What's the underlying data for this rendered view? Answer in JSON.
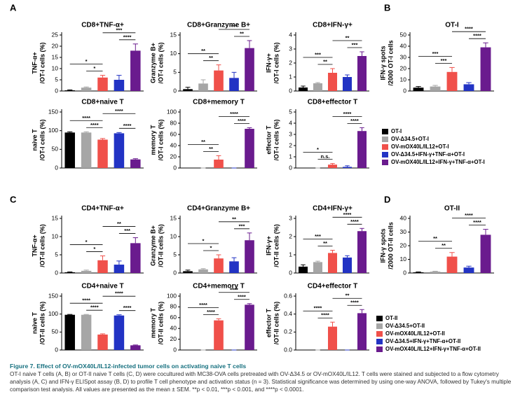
{
  "panel_labels": [
    "A",
    "B",
    "C",
    "D"
  ],
  "bar_colors": [
    "#000000",
    "#a6a6a6",
    "#f0504a",
    "#2233c4",
    "#6a1b8e"
  ],
  "legends": [
    {
      "entries": [
        "OT-I",
        "OV-Δ34.5+OT-I",
        "OV-mOX40L/IL12+OT-I",
        "OV-Δ34.5+IFN-γ+TNF-α+OT-I",
        "OV-mOX40L/IL12+IFN-γ+TNF-α+OT-I"
      ]
    },
    {
      "entries": [
        "OT-II",
        "OV-Δ34.5+OT-II",
        "OV-mOX40L/IL12+OT-II",
        "OV-Δ34.5+IFN-γ+TNF-α+OT-II",
        "OV-mOX40L/IL12+IFN-γ+TNF-α+OT-II"
      ]
    }
  ],
  "chart_data": [
    {
      "type": "bar",
      "title": "CD8+TNF-α+",
      "y_label": [
        "TNF-α+",
        "/OT-I cells (%)"
      ],
      "values": [
        0.3,
        1.5,
        6,
        5,
        18
      ],
      "errors": [
        0.2,
        0.3,
        1,
        2,
        3
      ],
      "ylim": [
        0,
        25
      ],
      "yticks": [
        0,
        5,
        10,
        15,
        20,
        25
      ],
      "comparisons": [
        {
          "bars": [
            0,
            2
          ],
          "label": "*"
        },
        {
          "bars": [
            1,
            2
          ],
          "label": "*"
        },
        {
          "bars": [
            2,
            4
          ],
          "label": "***"
        },
        {
          "bars": [
            3,
            4
          ],
          "label": "****"
        }
      ]
    },
    {
      "type": "bar",
      "title": "CD8+Granzyme B+",
      "y_label": [
        "Granzyme B+",
        "/OT-I cells (%)"
      ],
      "values": [
        0.5,
        2,
        5.5,
        3.5,
        11.5
      ],
      "errors": [
        0.5,
        1,
        1.5,
        1.5,
        2
      ],
      "ylim": [
        0,
        15
      ],
      "yticks": [
        0,
        5,
        10,
        15
      ],
      "comparisons": [
        {
          "bars": [
            0,
            2
          ],
          "label": "**"
        },
        {
          "bars": [
            1,
            2
          ],
          "label": "**"
        },
        {
          "bars": [
            2,
            4
          ],
          "label": "***"
        },
        {
          "bars": [
            3,
            4
          ],
          "label": "**"
        }
      ]
    },
    {
      "type": "bar",
      "title": "CD8+IFN-γ+",
      "y_label": [
        "IFN-γ+",
        "/OT-I cells (%)"
      ],
      "values": [
        0.25,
        0.55,
        1.3,
        1.0,
        2.5
      ],
      "errors": [
        0.1,
        0.05,
        0.3,
        0.15,
        0.3
      ],
      "ylim": [
        0,
        4
      ],
      "yticks": [
        0,
        1,
        2,
        3,
        4
      ],
      "comparisons": [
        {
          "bars": [
            0,
            2
          ],
          "label": "***"
        },
        {
          "bars": [
            1,
            2
          ],
          "label": "**"
        },
        {
          "bars": [
            2,
            4
          ],
          "label": "**"
        },
        {
          "bars": [
            3,
            4
          ],
          "label": "***"
        }
      ]
    },
    {
      "type": "bar",
      "title": "OT-I",
      "y_label": [
        "IFN-γ spots",
        "/2000 OT-I cells"
      ],
      "values": [
        3,
        4,
        17,
        6,
        39
      ],
      "errors": [
        1,
        1,
        4,
        1.5,
        4
      ],
      "ylim": [
        0,
        50
      ],
      "yticks": [
        0,
        10,
        20,
        30,
        40,
        50
      ],
      "comparisons": [
        {
          "bars": [
            0,
            2
          ],
          "label": "***"
        },
        {
          "bars": [
            1,
            2
          ],
          "label": "***"
        },
        {
          "bars": [
            2,
            4
          ],
          "label": "****"
        },
        {
          "bars": [
            3,
            4
          ],
          "label": "****"
        }
      ]
    },
    {
      "type": "bar",
      "title": "CD8+naive T",
      "y_label": [
        "naive T",
        "/OT-I cells (%)"
      ],
      "values": [
        95,
        95,
        76,
        93,
        23
      ],
      "errors": [
        2,
        2,
        3,
        2,
        2
      ],
      "ylim": [
        0,
        150
      ],
      "yticks": [
        0,
        50,
        100,
        150
      ],
      "comparisons": [
        {
          "bars": [
            0,
            2
          ],
          "label": "****"
        },
        {
          "bars": [
            1,
            2
          ],
          "label": "****"
        },
        {
          "bars": [
            2,
            4
          ],
          "label": "****"
        },
        {
          "bars": [
            3,
            4
          ],
          "label": "****"
        }
      ]
    },
    {
      "type": "bar",
      "title": "CD8+memory T",
      "y_label": [
        "memory T",
        "/OT-I cells (%)"
      ],
      "values": [
        0,
        0,
        15,
        0,
        70
      ],
      "errors": [
        0,
        0,
        7,
        0,
        2
      ],
      "ylim": [
        0,
        100
      ],
      "yticks": [
        0,
        20,
        40,
        60,
        80,
        100
      ],
      "comparisons": [
        {
          "bars": [
            0,
            2
          ],
          "label": "**"
        },
        {
          "bars": [
            1,
            2
          ],
          "label": "**"
        },
        {
          "bars": [
            2,
            4
          ],
          "label": "****"
        },
        {
          "bars": [
            3,
            4
          ],
          "label": "****"
        }
      ]
    },
    {
      "type": "bar",
      "title": "CD8+effector T",
      "y_label": [
        "effector T",
        "/OT-I cells (%)"
      ],
      "values": [
        0,
        0,
        0.3,
        0.1,
        3.3
      ],
      "errors": [
        0,
        0,
        0.1,
        0.1,
        0.3
      ],
      "ylim": [
        0,
        5
      ],
      "yticks": [
        0,
        1,
        2,
        3,
        4,
        5
      ],
      "comparisons": [
        {
          "bars": [
            0,
            2
          ],
          "label": "*"
        },
        {
          "bars": [
            1,
            2
          ],
          "label": "n.s."
        },
        {
          "bars": [
            2,
            4
          ],
          "label": "****"
        },
        {
          "bars": [
            3,
            4
          ],
          "label": "****"
        }
      ]
    },
    {
      "type": "bar",
      "title": "CD4+TNF-α+",
      "y_label": [
        "TNF-α+",
        "/OT-II cells (%)"
      ],
      "values": [
        0.2,
        0.6,
        3.5,
        2.3,
        8.2
      ],
      "errors": [
        0.1,
        0.2,
        1.2,
        1,
        1.5
      ],
      "ylim": [
        0,
        15
      ],
      "yticks": [
        0,
        5,
        10,
        15
      ],
      "comparisons": [
        {
          "bars": [
            0,
            2
          ],
          "label": "*"
        },
        {
          "bars": [
            1,
            2
          ],
          "label": "*"
        },
        {
          "bars": [
            2,
            4
          ],
          "label": "**"
        },
        {
          "bars": [
            3,
            4
          ],
          "label": "***"
        }
      ]
    },
    {
      "type": "bar",
      "title": "CD4+Granzyme B+",
      "y_label": [
        "Granzyme B+",
        "/OT-II cells (%)"
      ],
      "values": [
        0.5,
        1,
        4,
        3.2,
        9
      ],
      "errors": [
        0.3,
        0.2,
        1,
        1,
        2
      ],
      "ylim": [
        0,
        15
      ],
      "yticks": [
        0,
        5,
        10,
        15
      ],
      "comparisons": [
        {
          "bars": [
            0,
            2
          ],
          "label": "*"
        },
        {
          "bars": [
            1,
            2
          ],
          "label": "*"
        },
        {
          "bars": [
            2,
            4
          ],
          "label": "**"
        },
        {
          "bars": [
            3,
            4
          ],
          "label": "***"
        }
      ]
    },
    {
      "type": "bar",
      "title": "CD4+IFN-γ+",
      "y_label": [
        "IFN-γ+",
        "/OT-II cells (%)"
      ],
      "values": [
        0.35,
        0.6,
        1.1,
        0.85,
        2.3
      ],
      "errors": [
        0.1,
        0.05,
        0.15,
        0.1,
        0.15
      ],
      "ylim": [
        0,
        3
      ],
      "yticks": [
        0,
        1,
        2,
        3
      ],
      "comparisons": [
        {
          "bars": [
            0,
            2
          ],
          "label": "***"
        },
        {
          "bars": [
            1,
            2
          ],
          "label": "**"
        },
        {
          "bars": [
            2,
            4
          ],
          "label": "****"
        },
        {
          "bars": [
            3,
            4
          ],
          "label": "****"
        }
      ]
    },
    {
      "type": "bar",
      "title": "OT-II",
      "y_label": [
        "IFN-γ spots",
        "/2000 OT-II cells"
      ],
      "values": [
        0.5,
        1,
        12,
        4,
        28
      ],
      "errors": [
        0.3,
        0.3,
        3,
        1,
        4
      ],
      "ylim": [
        0,
        40
      ],
      "yticks": [
        0,
        10,
        20,
        30,
        40
      ],
      "comparisons": [
        {
          "bars": [
            0,
            2
          ],
          "label": "**"
        },
        {
          "bars": [
            1,
            2
          ],
          "label": "**"
        },
        {
          "bars": [
            2,
            4
          ],
          "label": "****"
        },
        {
          "bars": [
            3,
            4
          ],
          "label": "****"
        }
      ]
    },
    {
      "type": "bar",
      "title": "CD4+naive T",
      "y_label": [
        "naive T",
        "/OT-II cells (%)"
      ],
      "values": [
        98,
        98,
        43,
        96,
        13
      ],
      "errors": [
        1,
        1,
        2,
        2,
        1
      ],
      "ylim": [
        0,
        150
      ],
      "yticks": [
        0,
        50,
        100,
        150
      ],
      "comparisons": [
        {
          "bars": [
            0,
            2
          ],
          "label": "****"
        },
        {
          "bars": [
            1,
            2
          ],
          "label": "****"
        },
        {
          "bars": [
            2,
            4
          ],
          "label": "****"
        },
        {
          "bars": [
            3,
            4
          ],
          "label": "****"
        }
      ]
    },
    {
      "type": "bar",
      "title": "CD4+memory T",
      "y_label": [
        "memory T",
        "/OT-II cells (%)"
      ],
      "values": [
        0,
        0,
        55,
        0,
        84
      ],
      "errors": [
        0,
        0,
        3,
        0,
        2
      ],
      "ylim": [
        0,
        100
      ],
      "yticks": [
        0,
        20,
        40,
        60,
        80,
        100
      ],
      "comparisons": [
        {
          "bars": [
            0,
            2
          ],
          "label": "****"
        },
        {
          "bars": [
            1,
            2
          ],
          "label": "****"
        },
        {
          "bars": [
            2,
            4
          ],
          "label": "****"
        },
        {
          "bars": [
            3,
            4
          ],
          "label": "****"
        }
      ]
    },
    {
      "type": "bar",
      "title": "CD4+effector T",
      "y_label": [
        "effector T",
        "/OT-II cells (%)"
      ],
      "values": [
        0,
        0,
        0.26,
        0,
        0.41
      ],
      "errors": [
        0,
        0,
        0.05,
        0,
        0.04
      ],
      "ylim": [
        0,
        0.6
      ],
      "yticks": [
        {
          "value": 0,
          "label": "0.0"
        },
        0.2,
        0.4,
        0.6
      ],
      "comparisons": [
        {
          "bars": [
            0,
            2
          ],
          "label": "****"
        },
        {
          "bars": [
            1,
            2
          ],
          "label": "****"
        },
        {
          "bars": [
            2,
            4
          ],
          "label": "**"
        },
        {
          "bars": [
            3,
            4
          ],
          "label": "****"
        }
      ]
    }
  ],
  "caption": {
    "title": "Figure 7. Effect of OV-mOX40L/IL12-infected tumor cells on activating naive T cells",
    "text": "OT-I naive T cells (A, B) or OT-II naive T cells (C, D) were cocultured with MC38-OVA cells pretreated with OV-Δ34.5 or OV-mOX40L/IL12. T cells were stained and subjected to a flow cytometry analysis (A, C) and IFN-γ ELISpot assay (B, D) to profile T cell phenotype and activation status (n = 3). Statistical significance was determined by using one-way ANOVA, followed by Tukey's multiple comparison test analysis. All values are presented as the mean ± SEM. **p < 0.01, ***p < 0.001, and ****p < 0.0001."
  }
}
